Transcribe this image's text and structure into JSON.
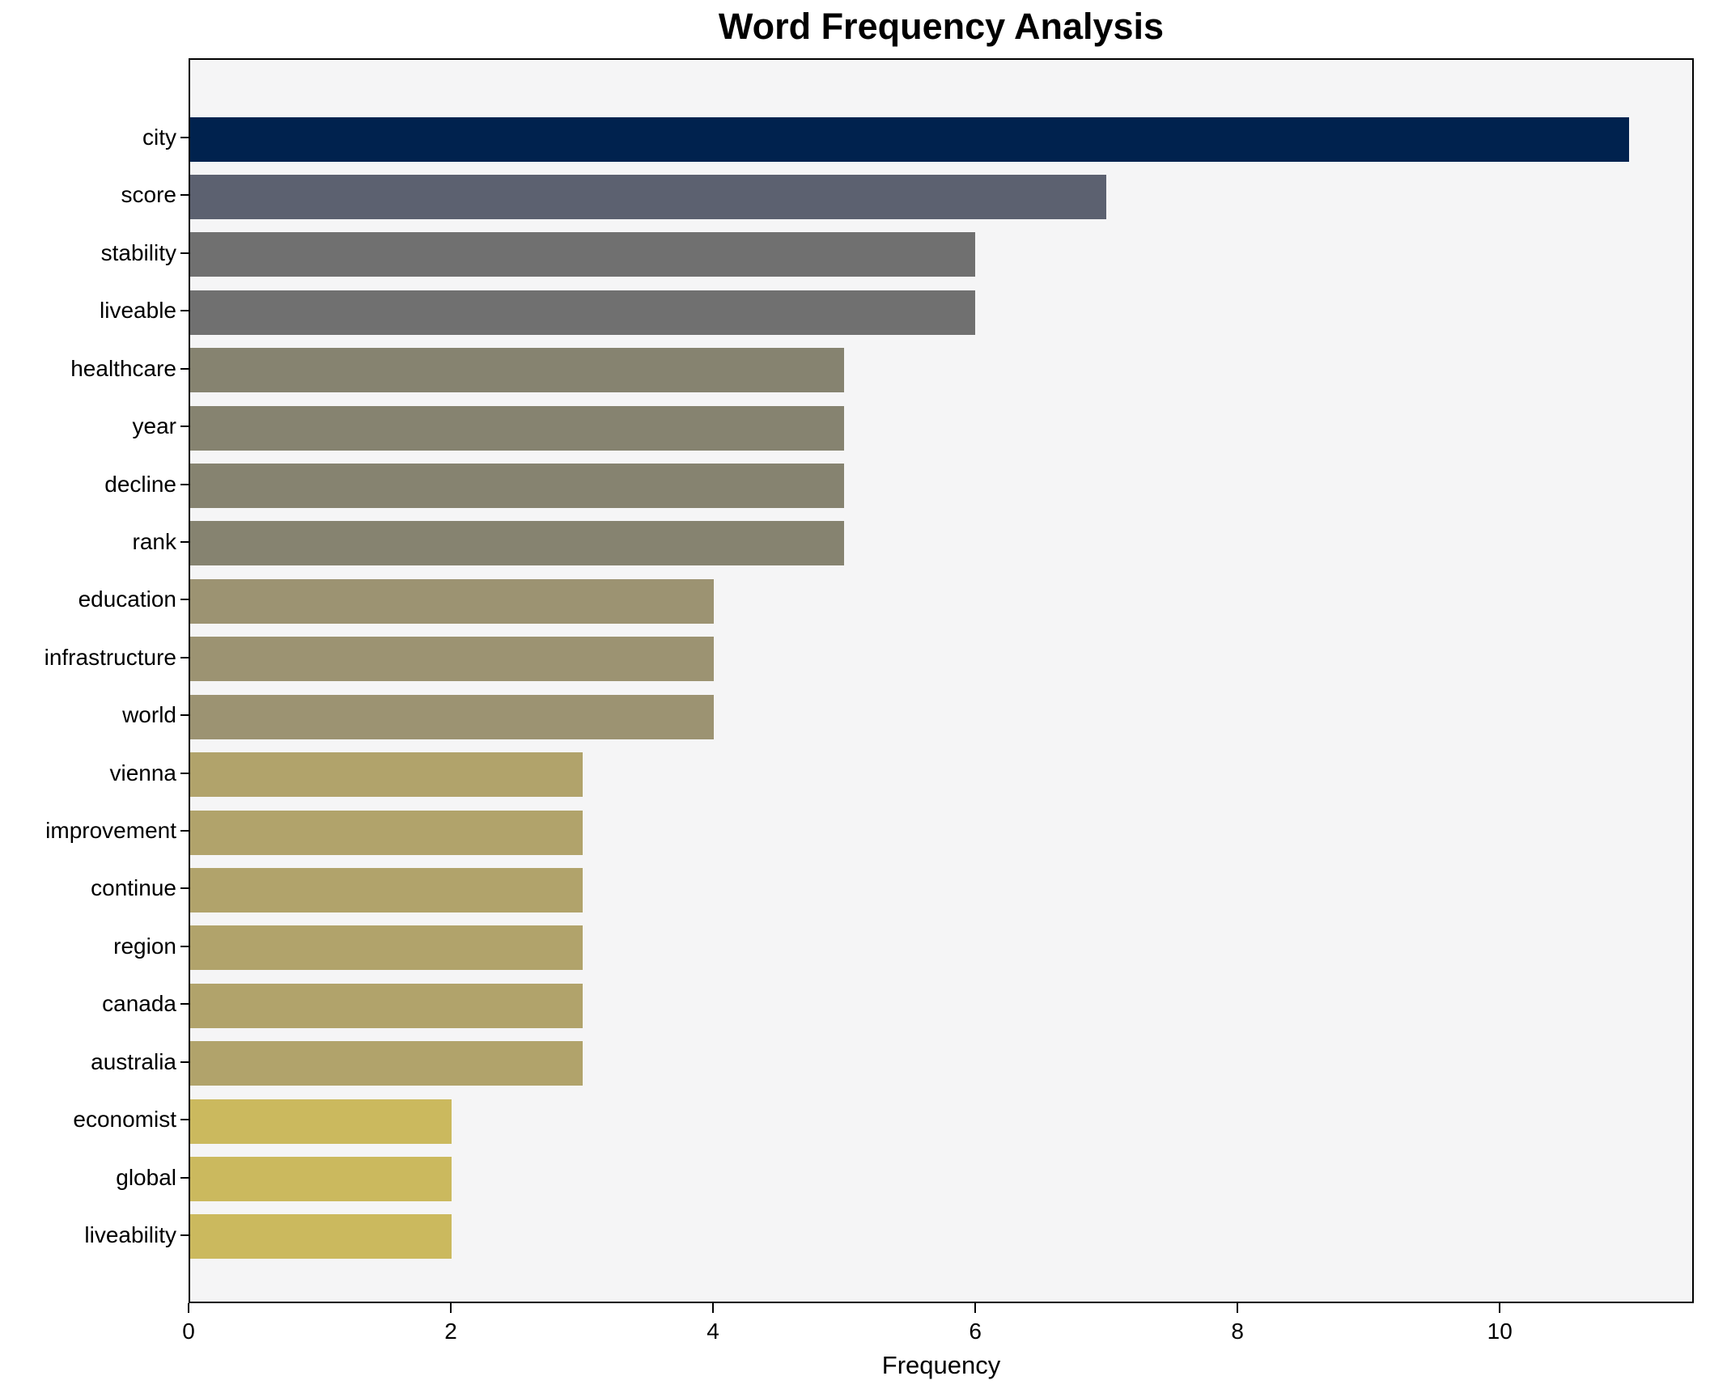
{
  "chart_data": {
    "type": "bar",
    "orientation": "horizontal",
    "title": "Word Frequency Analysis",
    "xlabel": "Frequency",
    "ylabel": "",
    "categories": [
      "city",
      "score",
      "stability",
      "liveable",
      "healthcare",
      "year",
      "decline",
      "rank",
      "education",
      "infrastructure",
      "world",
      "vienna",
      "improvement",
      "continue",
      "region",
      "canada",
      "australia",
      "economist",
      "global",
      "liveability"
    ],
    "values": [
      11,
      7,
      6,
      6,
      5,
      5,
      5,
      5,
      4,
      4,
      4,
      3,
      3,
      3,
      3,
      3,
      3,
      2,
      2,
      2
    ],
    "bar_colors": [
      "#00224e",
      "#5c6170",
      "#707070",
      "#707070",
      "#868370",
      "#868370",
      "#868370",
      "#868370",
      "#9c9372",
      "#9c9372",
      "#9c9372",
      "#b1a36b",
      "#b1a36b",
      "#b1a36b",
      "#b1a36b",
      "#b1a36b",
      "#b1a36b",
      "#cbb95e",
      "#cbb95e",
      "#cbb95e"
    ],
    "x_ticks": [
      0,
      2,
      4,
      6,
      8,
      10
    ],
    "xlim": [
      0,
      11.48
    ],
    "grid": false,
    "legend": "none",
    "plot_background": "#f5f5f6",
    "figure_background": "#ffffff",
    "colormap": "cividis"
  }
}
